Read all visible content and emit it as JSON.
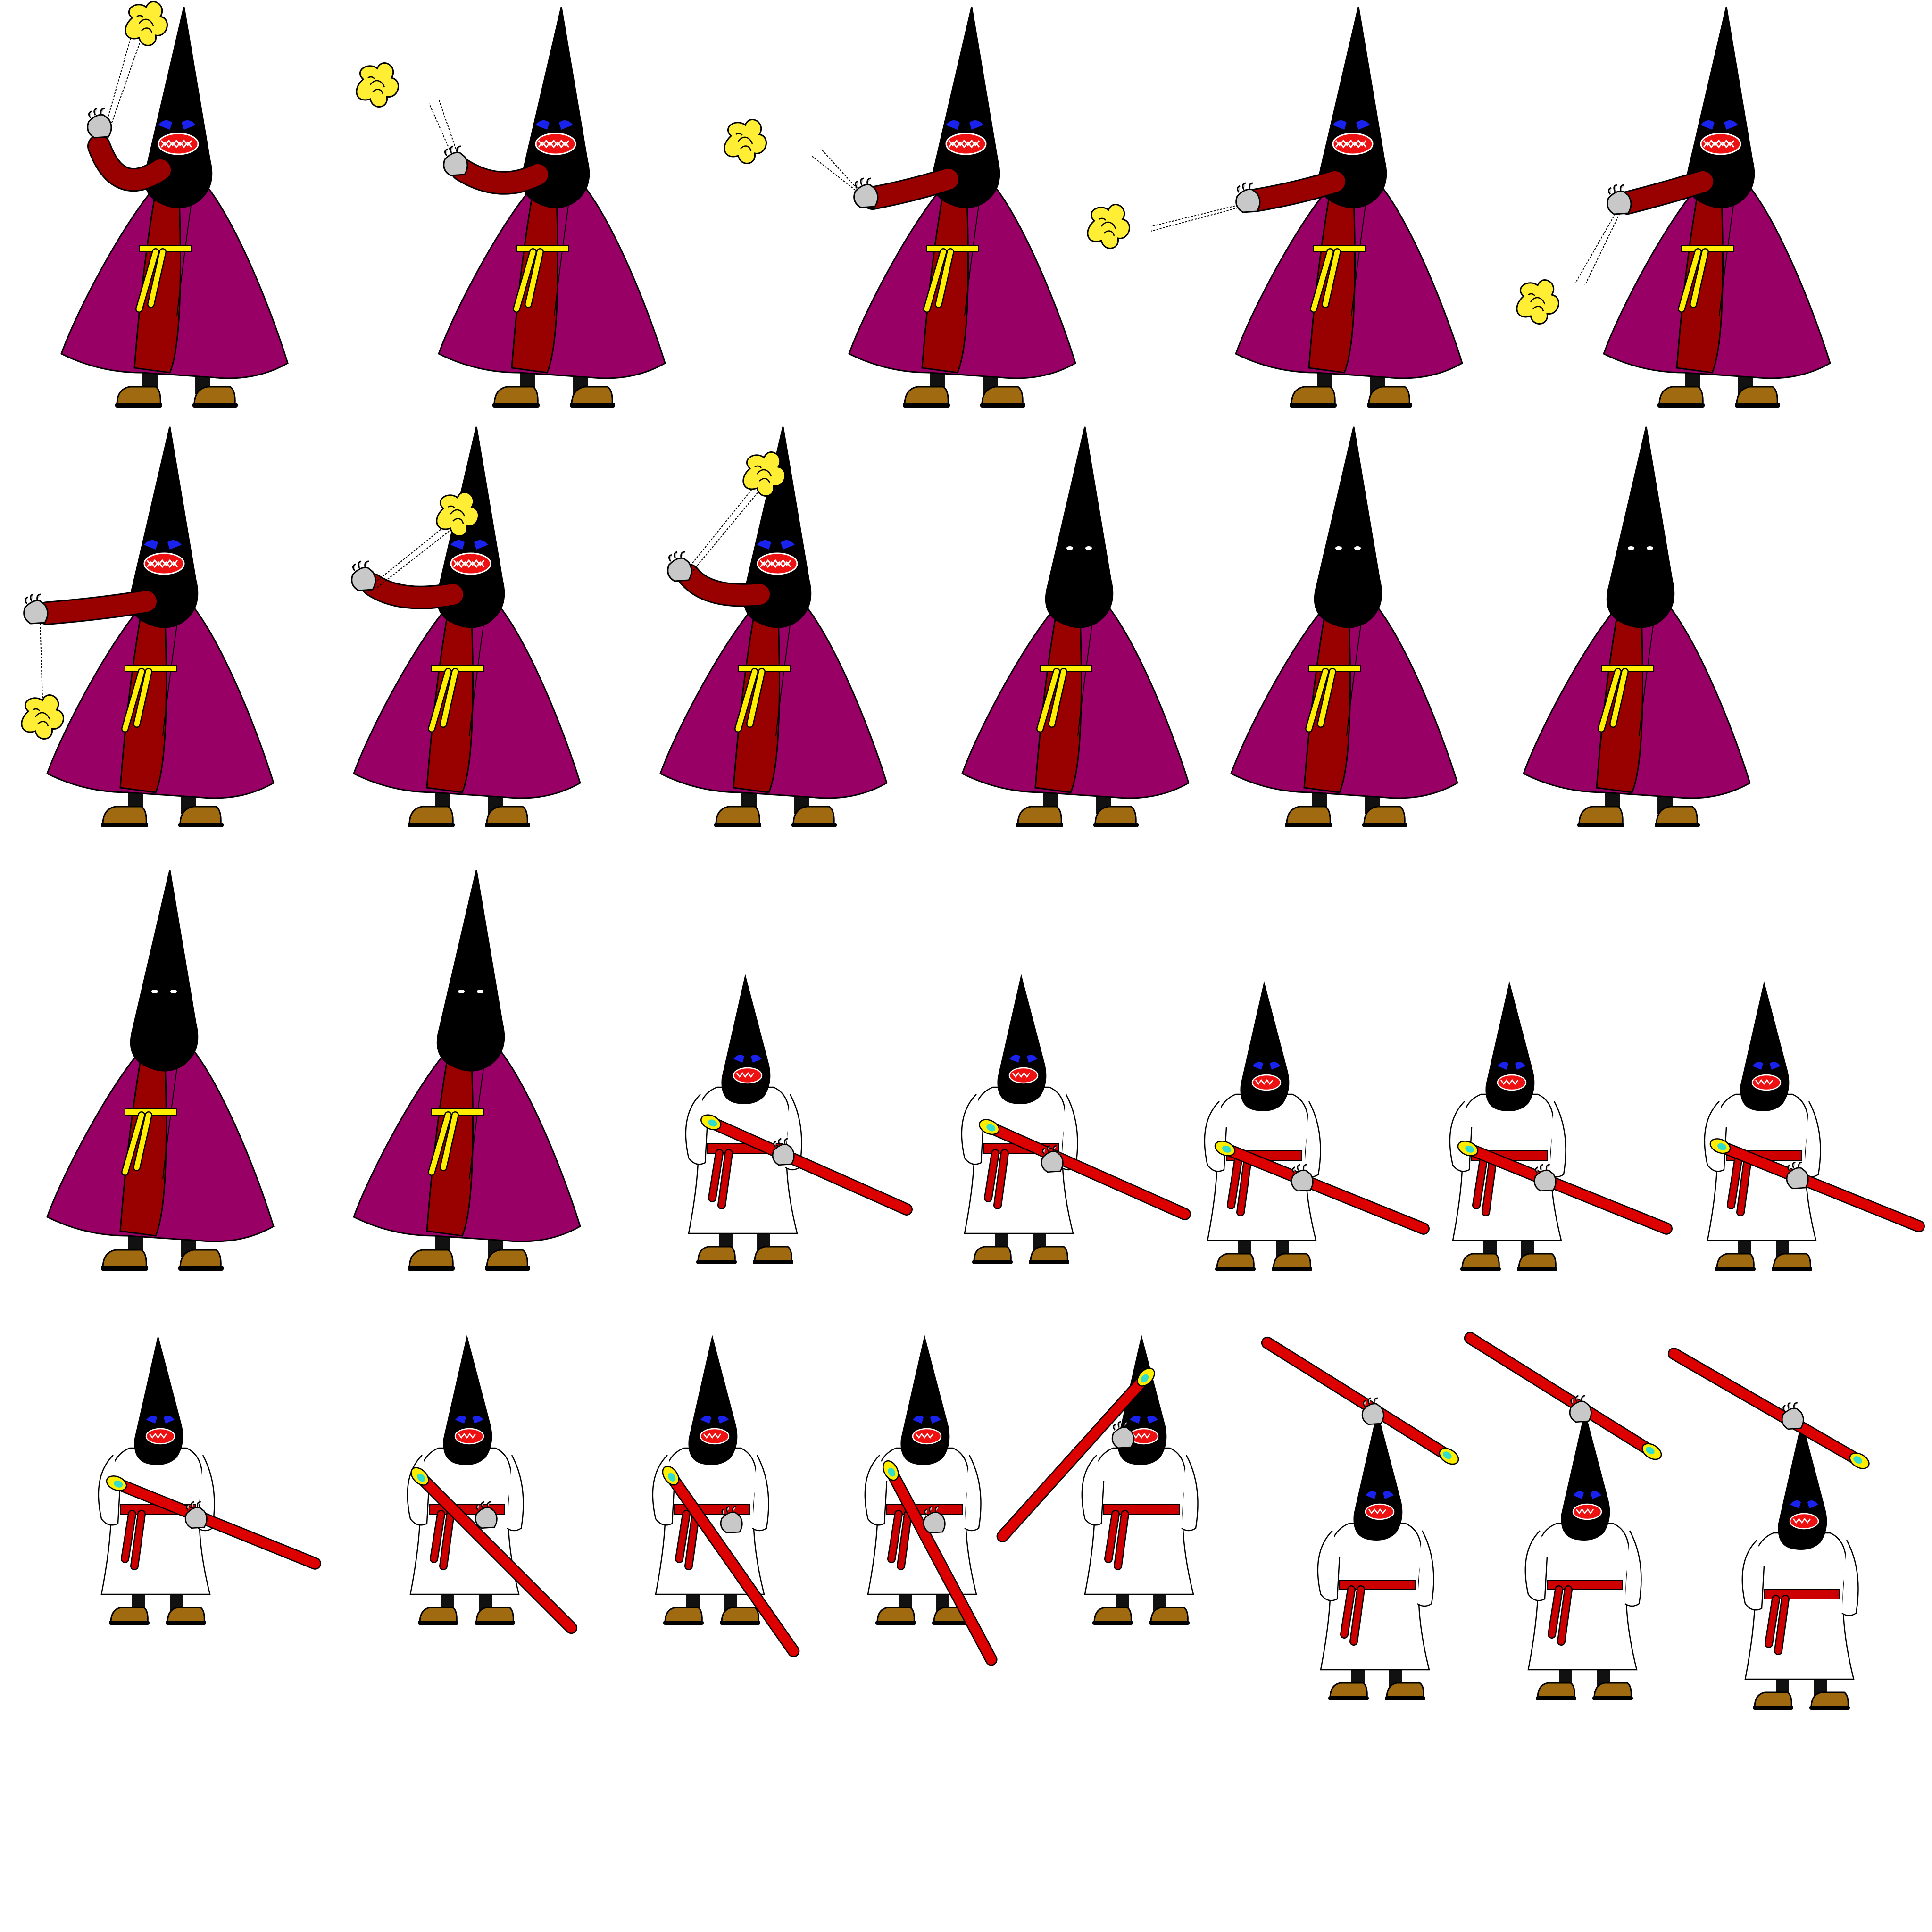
{
  "sheet": {
    "title": "",
    "background": "#ffffff"
  },
  "palette": {
    "hood": "#000000",
    "cape": "#990066",
    "robe_red": "#990000",
    "cord": "#ffff00",
    "censer": "#ffee33",
    "boots": "#a06a10",
    "glove": "#c8c8c8",
    "mouth": "#e00000",
    "eyes_angry": "#0000ee",
    "robe_white": "#ffffff",
    "belt_red": "#cc0000",
    "staff": "#dd0000",
    "staff_tip": "#ffee00",
    "staff_gem": "#33ddcc"
  },
  "frames": [
    {
      "character": "censer-bearer",
      "pose": "censer-up",
      "face": "angry"
    },
    {
      "character": "censer-bearer",
      "pose": "censer-up-left",
      "face": "angry"
    },
    {
      "character": "censer-bearer",
      "pose": "censer-left",
      "face": "angry"
    },
    {
      "character": "censer-bearer",
      "pose": "censer-far-left",
      "face": "angry"
    },
    {
      "character": "censer-bearer",
      "pose": "censer-down-left",
      "face": "angry"
    },
    {
      "character": "censer-bearer",
      "pose": "censer-down",
      "face": "angry"
    },
    {
      "character": "censer-bearer",
      "pose": "censer-up-left",
      "face": "angry"
    },
    {
      "character": "censer-bearer",
      "pose": "censer-up",
      "face": "angry"
    },
    {
      "character": "censer-bearer",
      "pose": "idle",
      "face": "neutral"
    },
    {
      "character": "censer-bearer",
      "pose": "idle",
      "face": "neutral"
    },
    {
      "character": "censer-bearer",
      "pose": "idle",
      "face": "neutral"
    },
    {
      "character": "censer-bearer",
      "pose": "idle",
      "face": "neutral"
    },
    {
      "character": "censer-bearer",
      "pose": "idle",
      "face": "neutral"
    },
    {
      "character": "staff-bearer",
      "pose": "staff-low",
      "face": "angry"
    },
    {
      "character": "staff-bearer",
      "pose": "staff-low",
      "face": "angry"
    },
    {
      "character": "staff-bearer",
      "pose": "staff-low",
      "face": "angry"
    },
    {
      "character": "staff-bearer",
      "pose": "staff-low",
      "face": "angry"
    },
    {
      "character": "staff-bearer",
      "pose": "staff-low",
      "face": "angry"
    },
    {
      "character": "staff-bearer",
      "pose": "staff-low",
      "face": "angry"
    },
    {
      "character": "staff-bearer",
      "pose": "staff-low",
      "face": "angry"
    },
    {
      "character": "staff-bearer",
      "pose": "staff-low",
      "face": "angry"
    },
    {
      "character": "staff-bearer",
      "pose": "staff-low",
      "face": "angry"
    },
    {
      "character": "staff-bearer",
      "pose": "staff-low",
      "face": "angry"
    },
    {
      "character": "staff-bearer",
      "pose": "staff-overhead",
      "face": "angry"
    },
    {
      "character": "staff-bearer",
      "pose": "staff-overhead",
      "face": "angry"
    },
    {
      "character": "staff-bearer",
      "pose": "staff-overhead",
      "face": "angry"
    }
  ]
}
